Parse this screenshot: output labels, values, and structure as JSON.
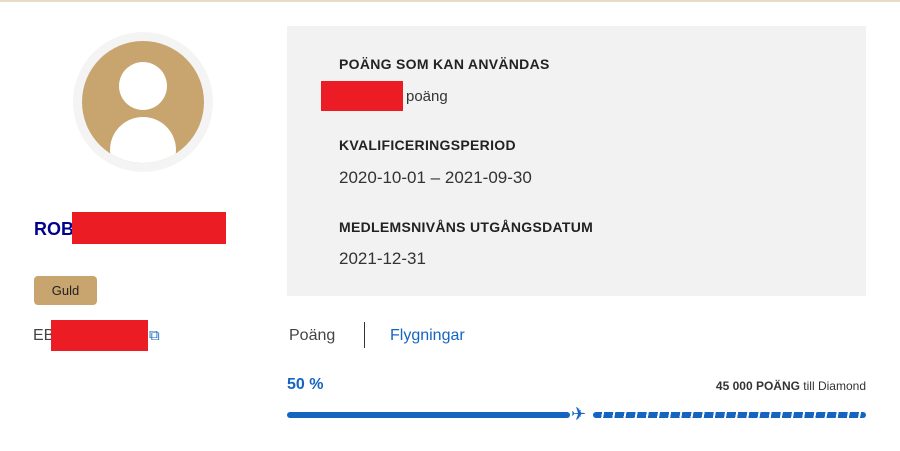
{
  "profile": {
    "name_prefix": "ROB",
    "tier": "Guld",
    "member_prefix": "EB",
    "copy_icon": "copy-icon"
  },
  "card": {
    "points_label": "POÄNG SOM KAN ANVÄNDAS",
    "points_unit": "poäng",
    "period_label": "KVALIFICERINGSPERIOD",
    "period_value": "2020-10-01 – 2021-09-30",
    "expiry_label": "MEDLEMSNIVÅNS UTGÅNGSDATUM",
    "expiry_value": "2021-12-31"
  },
  "tabs": [
    {
      "label": "Poäng"
    },
    {
      "label": "Flygningar"
    }
  ],
  "progress": {
    "percent_label": "50 %",
    "percent": 50,
    "goal_bold": "45 000 POÄNG",
    "goal_rest": " till Diamond",
    "accent": "#1565c0"
  }
}
